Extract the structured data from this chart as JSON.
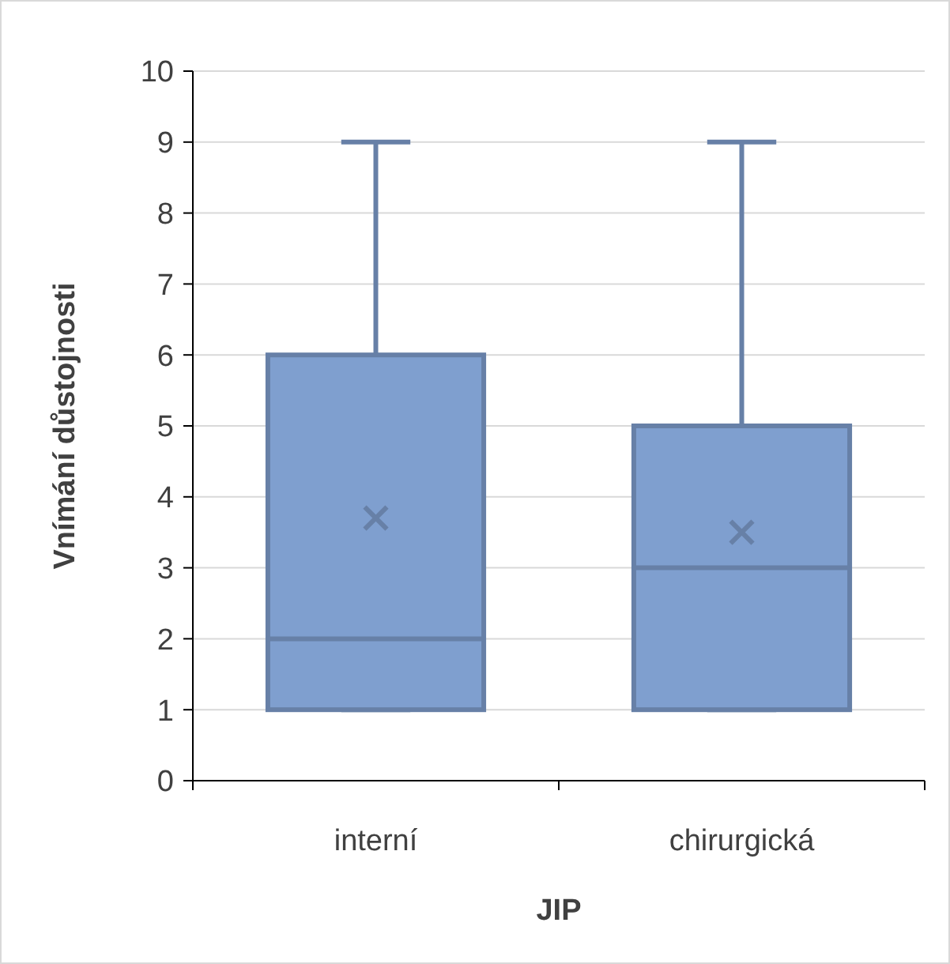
{
  "chart_data": {
    "type": "box",
    "xlabel": "JIP",
    "ylabel": "Vnímání důstojnosti",
    "categories": [
      "interní",
      "chirurgická"
    ],
    "color": "#7f9fcf",
    "boxes": [
      {
        "low": 1,
        "q1": 1,
        "median": 2,
        "q3": 6,
        "high": 9,
        "mean": 3.7
      },
      {
        "low": 1,
        "q1": 1,
        "median": 3,
        "q3": 5,
        "high": 9,
        "mean": 3.5
      }
    ],
    "ylim": [
      0,
      10
    ],
    "yticks": [
      0,
      1,
      2,
      3,
      4,
      5,
      6,
      7,
      8,
      9,
      10
    ],
    "grid": "y"
  }
}
